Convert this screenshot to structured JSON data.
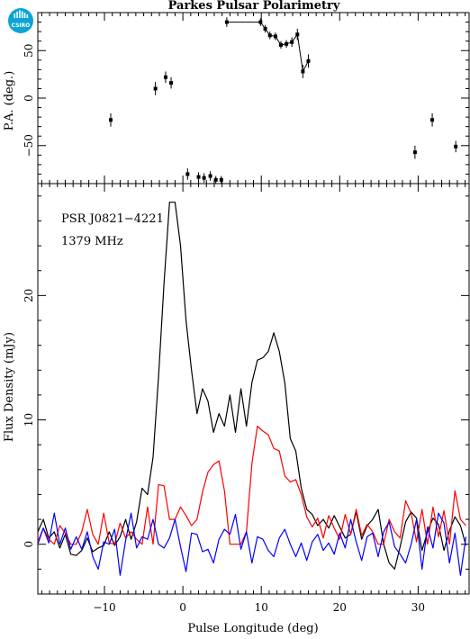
{
  "figure": {
    "title": "Parkes Pulsar Polarimetry",
    "logo_text": "CSIRO"
  },
  "chart_data": [
    {
      "type": "scatter",
      "panel": "top",
      "ylabel": "P.A. (deg.)",
      "xlim": [
        -18.5,
        36.5
      ],
      "ylim": [
        -90,
        90
      ],
      "y_ticks": [
        -50,
        0,
        50
      ],
      "grid": false,
      "points": [
        {
          "x": -9.2,
          "y": -23,
          "err": 7
        },
        {
          "x": -3.5,
          "y": 10,
          "err": 7
        },
        {
          "x": -2.2,
          "y": 22,
          "err": 6
        },
        {
          "x": -1.5,
          "y": 16,
          "err": 6
        },
        {
          "x": 0.6,
          "y": -80,
          "err": 6
        },
        {
          "x": 2.0,
          "y": -83,
          "err": 5
        },
        {
          "x": 2.7,
          "y": -84,
          "err": 5
        },
        {
          "x": 3.5,
          "y": -82,
          "err": 5
        },
        {
          "x": 4.2,
          "y": -86,
          "err": 4
        },
        {
          "x": 4.9,
          "y": -86,
          "err": 4
        },
        {
          "x": 5.6,
          "y": 80,
          "err": 5
        },
        {
          "x": 9.9,
          "y": 80,
          "err": 4
        },
        {
          "x": 10.5,
          "y": 73,
          "err": 4
        },
        {
          "x": 11.1,
          "y": 66,
          "err": 4
        },
        {
          "x": 11.8,
          "y": 65,
          "err": 4
        },
        {
          "x": 12.5,
          "y": 56,
          "err": 4
        },
        {
          "x": 13.2,
          "y": 57,
          "err": 4
        },
        {
          "x": 13.9,
          "y": 59,
          "err": 5
        },
        {
          "x": 14.6,
          "y": 67,
          "err": 6
        },
        {
          "x": 15.3,
          "y": 28,
          "err": 7
        },
        {
          "x": 16.0,
          "y": 39,
          "err": 7
        },
        {
          "x": 29.6,
          "y": -57,
          "err": 7
        },
        {
          "x": 31.8,
          "y": -23,
          "err": 7
        },
        {
          "x": 34.8,
          "y": -51,
          "err": 6
        }
      ],
      "connected_ranges": [
        [
          5.6,
          16.0
        ]
      ]
    },
    {
      "type": "line",
      "panel": "bottom",
      "xlabel": "Pulse Longitude (deg)",
      "ylabel": "Flux Density (mJy)",
      "xlim": [
        -18.5,
        36.5
      ],
      "ylim": [
        -4,
        29
      ],
      "x_ticks": [
        -10,
        0,
        10,
        20,
        30
      ],
      "y_ticks": [
        0,
        10,
        20
      ],
      "grid": false,
      "annotations": [
        "PSR J0821−4221",
        "1379 MHz"
      ],
      "x": [
        -18.5,
        -17.8,
        -17.1,
        -16.4,
        -15.7,
        -15.0,
        -14.3,
        -13.6,
        -12.9,
        -12.2,
        -11.5,
        -10.8,
        -10.1,
        -9.4,
        -8.7,
        -8.0,
        -7.3,
        -6.6,
        -5.9,
        -5.2,
        -4.5,
        -3.8,
        -3.1,
        -2.4,
        -1.7,
        -1.0,
        -0.3,
        0.4,
        1.1,
        1.8,
        2.5,
        3.2,
        3.9,
        4.6,
        5.3,
        6.0,
        6.7,
        7.4,
        8.1,
        8.8,
        9.5,
        10.2,
        10.9,
        11.6,
        12.3,
        13.0,
        13.7,
        14.4,
        15.1,
        15.8,
        16.5,
        17.2,
        17.9,
        18.6,
        19.3,
        20.0,
        20.7,
        21.4,
        22.1,
        22.8,
        23.5,
        24.2,
        24.9,
        25.6,
        26.3,
        27.0,
        27.7,
        28.4,
        29.1,
        29.8,
        30.5,
        31.2,
        31.9,
        32.6,
        33.3,
        34.0,
        34.7,
        35.4,
        36.1
      ],
      "series": [
        {
          "color": "#000000",
          "values": [
            1.0,
            2.0,
            0.5,
            1.0,
            -0.3,
            0.8,
            -0.8,
            -0.9,
            -0.5,
            0.5,
            -0.6,
            -0.3,
            -0.1,
            1.0,
            -0.1,
            0.6,
            2.0,
            0.4,
            1.8,
            4.5,
            4.0,
            7.0,
            13.5,
            21.0,
            27.5,
            27.5,
            24.0,
            18.0,
            14.0,
            10.5,
            12.5,
            11.5,
            9.0,
            10.5,
            9.5,
            12.0,
            9.0,
            12.5,
            9.5,
            13.0,
            14.8,
            15.0,
            15.5,
            17.0,
            15.5,
            13.0,
            8.5,
            7.5,
            4.5,
            2.8,
            2.4,
            1.5,
            2.0,
            1.3,
            2.3,
            1.4,
            0.5,
            0.8,
            2.6,
            0.4,
            1.5,
            2.0,
            2.8,
            0.0,
            -1.5,
            -2.0,
            -0.2,
            1.8,
            2.6,
            2.1,
            -0.5,
            1.0,
            2.1,
            1.6,
            -0.5,
            1.1,
            2.2,
            1.5,
            -0.1
          ]
        },
        {
          "color": "#ff0000",
          "values": [
            0.2,
            1.3,
            0.4,
            0.0,
            1.5,
            0.9,
            0.0,
            0.0,
            1.0,
            2.8,
            0.8,
            0.0,
            2.5,
            0.1,
            0.0,
            1.7,
            0.5,
            1.0,
            0.4,
            0.0,
            3.0,
            0.0,
            4.8,
            4.7,
            2.0,
            2.0,
            3.0,
            2.3,
            1.5,
            2.0,
            4.2,
            5.8,
            6.4,
            6.7,
            4.3,
            0.0,
            0.0,
            0.0,
            1.0,
            6.5,
            9.5,
            9.1,
            8.8,
            7.7,
            7.5,
            5.5,
            5.0,
            5.2,
            4.0,
            2.2,
            1.4,
            2.1,
            0.5,
            2.3,
            1.3,
            0.4,
            2.4,
            0.8,
            2.8,
            0.7,
            1.6,
            1.0,
            0.0,
            0.0,
            2.0,
            1.0,
            0.5,
            3.5,
            2.5,
            0.2,
            2.8,
            0.0,
            3.0,
            0.6,
            2.7,
            0.0,
            4.3,
            2.0,
            1.5
          ]
        },
        {
          "color": "#0000ff",
          "values": [
            0.0,
            1.3,
            0.1,
            2.5,
            0.0,
            1.3,
            -0.4,
            0.6,
            -0.4,
            1.0,
            -1.0,
            -2.0,
            0.2,
            0.0,
            1.2,
            -2.5,
            0.3,
            2.5,
            -0.3,
            0.6,
            0.4,
            2.0,
            0.0,
            -0.3,
            0.5,
            2.0,
            -0.2,
            -2.2,
            0.9,
            0.8,
            -0.6,
            -0.4,
            -1.5,
            0.4,
            1.2,
            0.8,
            2.4,
            -0.4,
            1.0,
            -1.5,
            0.6,
            0.4,
            -0.5,
            -1.0,
            0.5,
            1.2,
            0.0,
            -1.0,
            0.1,
            -1.3,
            0.2,
            0.8,
            -0.5,
            0.1,
            -0.8,
            0.9,
            -0.3,
            2.0,
            0.2,
            -1.3,
            0.6,
            0.9,
            -1.0,
            1.0,
            1.8,
            -0.2,
            -0.8,
            -1.5,
            0.0,
            2.0,
            -2.0,
            1.4,
            -0.3,
            2.5,
            1.7,
            -1.5,
            0.9,
            -2.5,
            0.6
          ]
        }
      ]
    }
  ]
}
